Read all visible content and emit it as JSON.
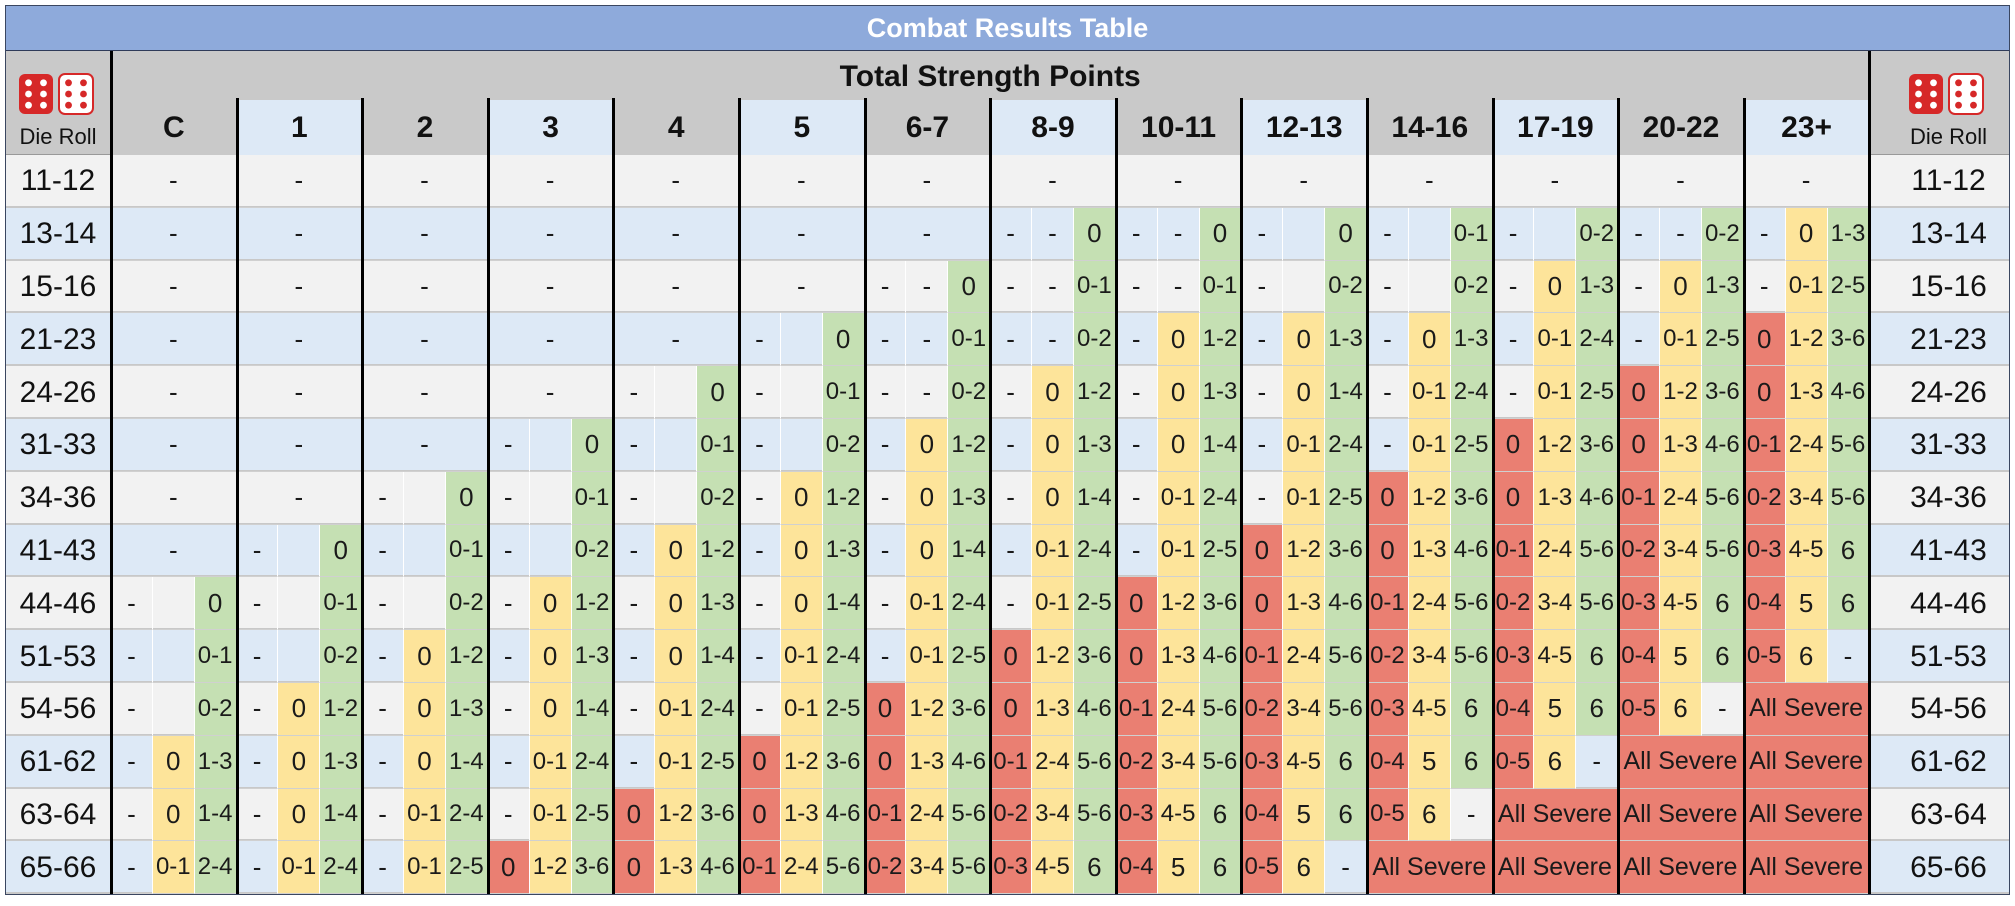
{
  "title": "Combat Results Table",
  "header": {
    "group_label": "Total Strength Points",
    "die_roll_label": "Die Roll",
    "dice_icon": "dice-icon"
  },
  "columns": [
    "C",
    "1",
    "2",
    "3",
    "4",
    "5",
    "6-7",
    "8-9",
    "10-11",
    "12-13",
    "14-16",
    "17-19",
    "20-22",
    "23+"
  ],
  "colors": {
    "title_bg": "#8eaadb",
    "header_bg": "#c9c9c9",
    "row_light": "#f2f2f2",
    "row_blue": "#dde9f6",
    "red": "#ea7f72",
    "yellow": "#fde49a",
    "green": "#c5e0b3",
    "die_red": "#d62828"
  },
  "rows": [
    {
      "label": "11-12",
      "cells": [
        [
          "-"
        ],
        [
          "-"
        ],
        [
          "-"
        ],
        [
          "-"
        ],
        [
          "-"
        ],
        [
          "-"
        ],
        [
          "-"
        ],
        [
          "-"
        ],
        [
          "-"
        ],
        [
          "-"
        ],
        [
          "-"
        ],
        [
          "-"
        ],
        [
          "-"
        ],
        [
          "-"
        ]
      ]
    },
    {
      "label": "13-14",
      "cells": [
        [
          "-"
        ],
        [
          "-"
        ],
        [
          "-"
        ],
        [
          "-"
        ],
        [
          "-"
        ],
        [
          "-"
        ],
        [
          "-"
        ],
        [
          "-",
          "-",
          "0"
        ],
        [
          "-",
          "-",
          "0"
        ],
        [
          "-",
          "",
          "0"
        ],
        [
          "-",
          "",
          "0-1"
        ],
        [
          "-",
          "",
          "0-2"
        ],
        [
          "-",
          "-",
          "0-2"
        ],
        [
          "-",
          "0",
          "1-3"
        ]
      ]
    },
    {
      "label": "15-16",
      "cells": [
        [
          "-"
        ],
        [
          "-"
        ],
        [
          "-"
        ],
        [
          "-"
        ],
        [
          "-"
        ],
        [
          "-"
        ],
        [
          "-",
          "-",
          "0"
        ],
        [
          "-",
          "-",
          "0-1"
        ],
        [
          "-",
          "-",
          "0-1"
        ],
        [
          "-",
          "",
          "0-2"
        ],
        [
          "-",
          "",
          "0-2"
        ],
        [
          "-",
          "0",
          "1-3"
        ],
        [
          "-",
          "0",
          "1-3"
        ],
        [
          "-",
          "0-1",
          "2-5"
        ]
      ]
    },
    {
      "label": "21-23",
      "cells": [
        [
          "-"
        ],
        [
          "-"
        ],
        [
          "-"
        ],
        [
          "-"
        ],
        [
          "-"
        ],
        [
          "-",
          "",
          "0"
        ],
        [
          "-",
          "-",
          "0-1"
        ],
        [
          "-",
          "-",
          "0-2"
        ],
        [
          "-",
          "0",
          "1-2"
        ],
        [
          "-",
          "0",
          "1-3"
        ],
        [
          "-",
          "0",
          "1-3"
        ],
        [
          "-",
          "0-1",
          "2-4"
        ],
        [
          "-",
          "0-1",
          "2-5"
        ],
        [
          "0",
          "1-2",
          "3-6"
        ]
      ]
    },
    {
      "label": "24-26",
      "cells": [
        [
          "-"
        ],
        [
          "-"
        ],
        [
          "-"
        ],
        [
          "-"
        ],
        [
          "-",
          "",
          "0"
        ],
        [
          "-",
          "",
          "0-1"
        ],
        [
          "-",
          "-",
          "0-2"
        ],
        [
          "-",
          "0",
          "1-2"
        ],
        [
          "-",
          "0",
          "1-3"
        ],
        [
          "-",
          "0",
          "1-4"
        ],
        [
          "-",
          "0-1",
          "2-4"
        ],
        [
          "-",
          "0-1",
          "2-5"
        ],
        [
          "0",
          "1-2",
          "3-6"
        ],
        [
          "0",
          "1-3",
          "4-6"
        ]
      ]
    },
    {
      "label": "31-33",
      "cells": [
        [
          "-"
        ],
        [
          "-"
        ],
        [
          "-"
        ],
        [
          "-",
          "",
          "0"
        ],
        [
          "-",
          "",
          "0-1"
        ],
        [
          "-",
          "",
          "0-2"
        ],
        [
          "-",
          "0",
          "1-2"
        ],
        [
          "-",
          "0",
          "1-3"
        ],
        [
          "-",
          "0",
          "1-4"
        ],
        [
          "-",
          "0-1",
          "2-4"
        ],
        [
          "-",
          "0-1",
          "2-5"
        ],
        [
          "0",
          "1-2",
          "3-6"
        ],
        [
          "0",
          "1-3",
          "4-6"
        ],
        [
          "0-1",
          "2-4",
          "5-6"
        ]
      ]
    },
    {
      "label": "34-36",
      "cells": [
        [
          "-"
        ],
        [
          "-"
        ],
        [
          "-",
          "",
          "0"
        ],
        [
          "-",
          "",
          "0-1"
        ],
        [
          "-",
          "",
          "0-2"
        ],
        [
          "-",
          "0",
          "1-2"
        ],
        [
          "-",
          "0",
          "1-3"
        ],
        [
          "-",
          "0",
          "1-4"
        ],
        [
          "-",
          "0-1",
          "2-4"
        ],
        [
          "-",
          "0-1",
          "2-5"
        ],
        [
          "0",
          "1-2",
          "3-6"
        ],
        [
          "0",
          "1-3",
          "4-6"
        ],
        [
          "0-1",
          "2-4",
          "5-6"
        ],
        [
          "0-2",
          "3-4",
          "5-6"
        ]
      ]
    },
    {
      "label": "41-43",
      "cells": [
        [
          "-"
        ],
        [
          "-",
          "",
          "0"
        ],
        [
          "-",
          "",
          "0-1"
        ],
        [
          "-",
          "",
          "0-2"
        ],
        [
          "-",
          "0",
          "1-2"
        ],
        [
          "-",
          "0",
          "1-3"
        ],
        [
          "-",
          "0",
          "1-4"
        ],
        [
          "-",
          "0-1",
          "2-4"
        ],
        [
          "-",
          "0-1",
          "2-5"
        ],
        [
          "0",
          "1-2",
          "3-6"
        ],
        [
          "0",
          "1-3",
          "4-6"
        ],
        [
          "0-1",
          "2-4",
          "5-6"
        ],
        [
          "0-2",
          "3-4",
          "5-6"
        ],
        [
          "0-3",
          "4-5",
          "6"
        ]
      ]
    },
    {
      "label": "44-46",
      "cells": [
        [
          "-",
          "",
          "0"
        ],
        [
          "-",
          "",
          "0-1"
        ],
        [
          "-",
          "",
          "0-2"
        ],
        [
          "-",
          "0",
          "1-2"
        ],
        [
          "-",
          "0",
          "1-3"
        ],
        [
          "-",
          "0",
          "1-4"
        ],
        [
          "-",
          "0-1",
          "2-4"
        ],
        [
          "-",
          "0-1",
          "2-5"
        ],
        [
          "0",
          "1-2",
          "3-6"
        ],
        [
          "0",
          "1-3",
          "4-6"
        ],
        [
          "0-1",
          "2-4",
          "5-6"
        ],
        [
          "0-2",
          "3-4",
          "5-6"
        ],
        [
          "0-3",
          "4-5",
          "6"
        ],
        [
          "0-4",
          "5",
          "6"
        ]
      ]
    },
    {
      "label": "51-53",
      "cells": [
        [
          "-",
          "",
          "0-1"
        ],
        [
          "-",
          "",
          "0-2"
        ],
        [
          "-",
          "0",
          "1-2"
        ],
        [
          "-",
          "0",
          "1-3"
        ],
        [
          "-",
          "0",
          "1-4"
        ],
        [
          "-",
          "0-1",
          "2-4"
        ],
        [
          "-",
          "0-1",
          "2-5"
        ],
        [
          "0",
          "1-2",
          "3-6"
        ],
        [
          "0",
          "1-3",
          "4-6"
        ],
        [
          "0-1",
          "2-4",
          "5-6"
        ],
        [
          "0-2",
          "3-4",
          "5-6"
        ],
        [
          "0-3",
          "4-5",
          "6"
        ],
        [
          "0-4",
          "5",
          "6"
        ],
        [
          "0-5",
          "6",
          "-"
        ]
      ]
    },
    {
      "label": "54-56",
      "cells": [
        [
          "-",
          "",
          "0-2"
        ],
        [
          "-",
          "0",
          "1-2"
        ],
        [
          "-",
          "0",
          "1-3"
        ],
        [
          "-",
          "0",
          "1-4"
        ],
        [
          "-",
          "0-1",
          "2-4"
        ],
        [
          "-",
          "0-1",
          "2-5"
        ],
        [
          "0",
          "1-2",
          "3-6"
        ],
        [
          "0",
          "1-3",
          "4-6"
        ],
        [
          "0-1",
          "2-4",
          "5-6"
        ],
        [
          "0-2",
          "3-4",
          "5-6"
        ],
        [
          "0-3",
          "4-5",
          "6"
        ],
        [
          "0-4",
          "5",
          "6"
        ],
        [
          "0-5",
          "6",
          "-"
        ],
        [
          "All Severe"
        ]
      ]
    },
    {
      "label": "61-62",
      "cells": [
        [
          "-",
          "0",
          "1-3"
        ],
        [
          "-",
          "0",
          "1-3"
        ],
        [
          "-",
          "0",
          "1-4"
        ],
        [
          "-",
          "0-1",
          "2-4"
        ],
        [
          "-",
          "0-1",
          "2-5"
        ],
        [
          "0",
          "1-2",
          "3-6"
        ],
        [
          "0",
          "1-3",
          "4-6"
        ],
        [
          "0-1",
          "2-4",
          "5-6"
        ],
        [
          "0-2",
          "3-4",
          "5-6"
        ],
        [
          "0-3",
          "4-5",
          "6"
        ],
        [
          "0-4",
          "5",
          "6"
        ],
        [
          "0-5",
          "6",
          "-"
        ],
        [
          "All Severe"
        ],
        [
          "All Severe"
        ]
      ]
    },
    {
      "label": "63-64",
      "cells": [
        [
          "-",
          "0",
          "1-4"
        ],
        [
          "-",
          "0",
          "1-4"
        ],
        [
          "-",
          "0-1",
          "2-4"
        ],
        [
          "-",
          "0-1",
          "2-5"
        ],
        [
          "0",
          "1-2",
          "3-6"
        ],
        [
          "0",
          "1-3",
          "4-6"
        ],
        [
          "0-1",
          "2-4",
          "5-6"
        ],
        [
          "0-2",
          "3-4",
          "5-6"
        ],
        [
          "0-3",
          "4-5",
          "6"
        ],
        [
          "0-4",
          "5",
          "6"
        ],
        [
          "0-5",
          "6",
          "-"
        ],
        [
          "All Severe"
        ],
        [
          "All Severe"
        ],
        [
          "All Severe"
        ]
      ]
    },
    {
      "label": "65-66",
      "cells": [
        [
          "-",
          "0-1",
          "2-4"
        ],
        [
          "-",
          "0-1",
          "2-4"
        ],
        [
          "-",
          "0-1",
          "2-5"
        ],
        [
          "0",
          "1-2",
          "3-6"
        ],
        [
          "0",
          "1-3",
          "4-6"
        ],
        [
          "0-1",
          "2-4",
          "5-6"
        ],
        [
          "0-2",
          "3-4",
          "5-6"
        ],
        [
          "0-3",
          "4-5",
          "6"
        ],
        [
          "0-4",
          "5",
          "6"
        ],
        [
          "0-5",
          "6",
          "-"
        ],
        [
          "All Severe"
        ],
        [
          "All Severe"
        ],
        [
          "All Severe"
        ],
        [
          "All Severe"
        ]
      ]
    }
  ]
}
